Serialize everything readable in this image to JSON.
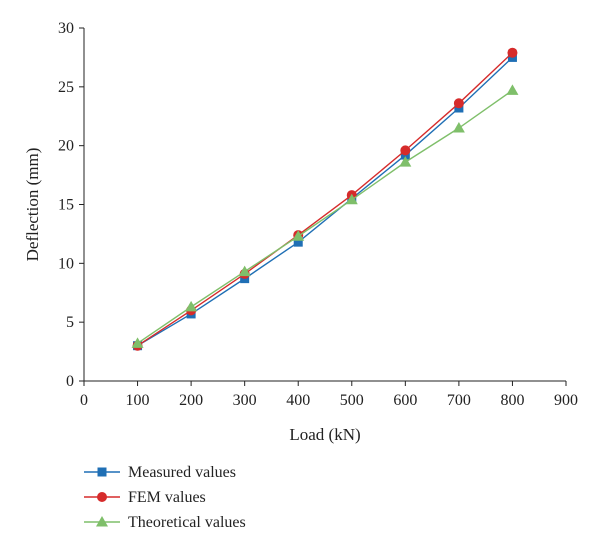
{
  "chart_data": {
    "type": "line",
    "title": "",
    "xlabel": "Load (kN)",
    "ylabel": "Deflection (mm)",
    "xlim": [
      0,
      900
    ],
    "ylim": [
      0,
      30
    ],
    "xticks": [
      0,
      100,
      200,
      300,
      400,
      500,
      600,
      700,
      800,
      900
    ],
    "yticks": [
      0,
      5,
      10,
      15,
      20,
      25,
      30
    ],
    "grid": false,
    "legend_position": "bottom-left",
    "x": [
      100,
      200,
      300,
      400,
      500,
      600,
      700,
      800
    ],
    "series": [
      {
        "name": "Measured values",
        "marker": "square",
        "color": "#1f6fb5",
        "values": [
          3.0,
          5.7,
          8.7,
          11.8,
          15.5,
          19.2,
          23.2,
          27.5
        ]
      },
      {
        "name": "FEM values",
        "marker": "circle",
        "color": "#d62b2b",
        "values": [
          3.0,
          6.0,
          9.1,
          12.4,
          15.8,
          19.6,
          23.6,
          27.9
        ]
      },
      {
        "name": "Theoretical values",
        "marker": "triangle",
        "color": "#7fbf6a",
        "values": [
          3.2,
          6.3,
          9.3,
          12.3,
          15.4,
          18.6,
          21.5,
          24.7
        ]
      }
    ]
  }
}
